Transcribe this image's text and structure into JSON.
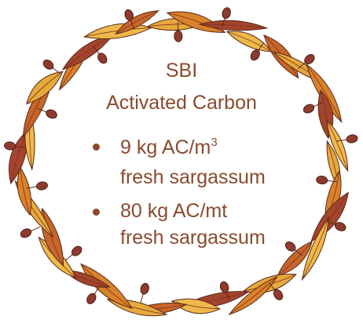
{
  "title": {
    "line1": "SBI",
    "line2": "Activated Carbon"
  },
  "bullets": [
    {
      "line1": "9 kg AC/m",
      "superscript": "3",
      "line2": "fresh sargassum"
    },
    {
      "line1": "80 kg AC/mt",
      "line2": "fresh sargassum"
    }
  ]
}
